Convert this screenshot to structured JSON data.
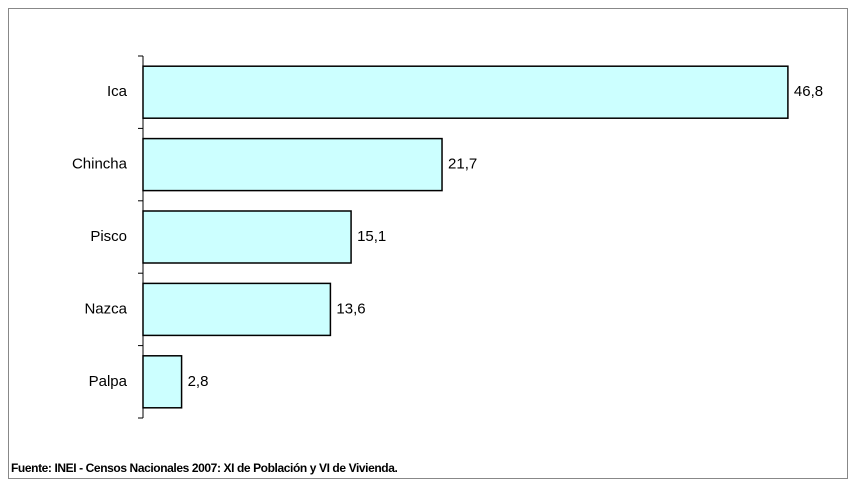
{
  "chart_data": {
    "type": "bar",
    "orientation": "horizontal",
    "categories": [
      "Ica",
      "Chincha",
      "Pisco",
      "Nazca",
      "Palpa"
    ],
    "values": [
      46.8,
      21.7,
      15.1,
      13.6,
      2.8
    ],
    "value_labels": [
      "46,8",
      "21,7",
      "15,1",
      "13,6",
      "2,8"
    ],
    "color": "#ccffff",
    "xlim": [
      0,
      50
    ],
    "source": "Fuente: INEI - Censos Nacionales 2007: XI de Población y VI de Vivienda."
  }
}
